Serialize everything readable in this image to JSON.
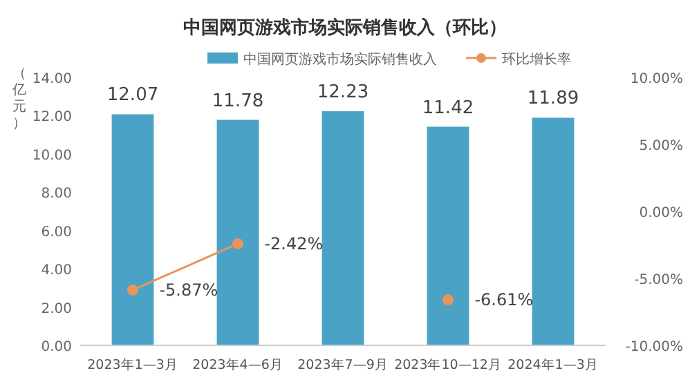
{
  "chart_data": {
    "type": "bar",
    "title": "中国网页游戏市场实际销售收入（环比）",
    "ylabel": "（亿元）",
    "categories": [
      "2023年1—3月",
      "2023年4—6月",
      "2023年7—9月",
      "2023年10—12月",
      "2024年1—3月"
    ],
    "series": [
      {
        "name": "中国网页游戏市场实际销售收入",
        "color": "#4aa3c6",
        "values": [
          12.07,
          11.78,
          12.23,
          11.42,
          11.89
        ],
        "value_labels": [
          "12.07",
          "11.78",
          "12.23",
          "11.42",
          "11.89"
        ]
      },
      {
        "name": "环比增长率",
        "type": "line",
        "axis": "y2",
        "color": "#e8955a",
        "marker": "circle",
        "values": [
          -5.87,
          -2.42,
          null,
          -6.61,
          null
        ],
        "value_labels": [
          "-5.87%",
          "-2.42%",
          null,
          "-6.61%",
          null
        ]
      }
    ],
    "ylim": [
      0,
      14
    ],
    "yticks": [
      {
        "value": 0,
        "label": "0.00"
      },
      {
        "value": 2,
        "label": "2.00"
      },
      {
        "value": 4,
        "label": "4.00"
      },
      {
        "value": 6,
        "label": "6.00"
      },
      {
        "value": 8,
        "label": "8.00"
      },
      {
        "value": 10,
        "label": "10.00"
      },
      {
        "value": 12,
        "label": "12.00"
      },
      {
        "value": 14,
        "label": "14.00"
      }
    ],
    "y2lim": [
      -10,
      10
    ],
    "y2ticks": [
      {
        "value": -10,
        "label": "-10.00%"
      },
      {
        "value": -5,
        "label": "-5.00%"
      },
      {
        "value": 0,
        "label": "0.00%"
      },
      {
        "value": 5,
        "label": "5.00%"
      },
      {
        "value": 10,
        "label": "10.00%"
      }
    ],
    "legend": "top",
    "grid": false
  }
}
